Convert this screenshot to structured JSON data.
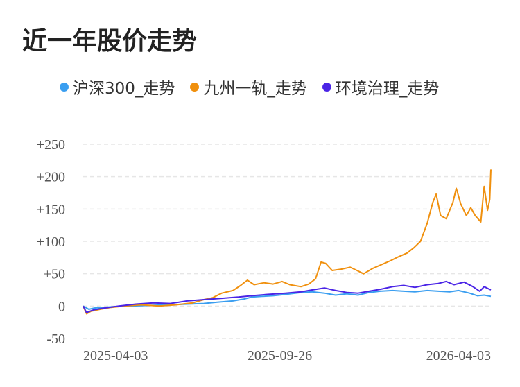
{
  "chart_data": {
    "type": "line",
    "title": "近一年股价走势",
    "xlabel": "",
    "ylabel": "",
    "x_ticks": [
      "2025-04-03",
      "2025-09-26",
      "2026-04-03"
    ],
    "y_ticks": [
      "+250",
      "+200",
      "+150",
      "+100",
      "+50",
      "0",
      "-50"
    ],
    "y_tick_values": [
      250,
      200,
      150,
      100,
      50,
      0,
      -50
    ],
    "ylim": [
      -50,
      250
    ],
    "x_domain": [
      "2025-04-03",
      "2026-04-03"
    ],
    "grid": true,
    "legend_position": "top",
    "series": [
      {
        "name": "沪深300_走势",
        "color": "#3a9ef0",
        "points": [
          [
            "2025-04-03",
            0
          ],
          [
            "2025-04-08",
            -5
          ],
          [
            "2025-04-13",
            -3
          ],
          [
            "2025-04-20",
            -2
          ],
          [
            "2025-04-30",
            -1
          ],
          [
            "2025-05-15",
            0
          ],
          [
            "2025-06-01",
            1
          ],
          [
            "2025-06-20",
            2
          ],
          [
            "2025-07-05",
            3
          ],
          [
            "2025-07-20",
            4
          ],
          [
            "2025-08-01",
            6
          ],
          [
            "2025-08-15",
            8
          ],
          [
            "2025-08-25",
            11
          ],
          [
            "2025-09-01",
            14
          ],
          [
            "2025-09-10",
            15
          ],
          [
            "2025-09-20",
            16
          ],
          [
            "2025-10-01",
            18
          ],
          [
            "2025-10-15",
            21
          ],
          [
            "2025-10-25",
            22
          ],
          [
            "2025-11-05",
            20
          ],
          [
            "2025-11-15",
            17
          ],
          [
            "2025-11-25",
            19
          ],
          [
            "2025-12-05",
            17
          ],
          [
            "2025-12-15",
            21
          ],
          [
            "2025-12-25",
            23
          ],
          [
            "2026-01-05",
            24
          ],
          [
            "2026-01-15",
            23
          ],
          [
            "2026-01-25",
            22
          ],
          [
            "2026-02-05",
            24
          ],
          [
            "2026-02-15",
            23
          ],
          [
            "2026-02-25",
            22
          ],
          [
            "2026-03-05",
            24
          ],
          [
            "2026-03-15",
            20
          ],
          [
            "2026-03-22",
            16
          ],
          [
            "2026-03-28",
            17
          ],
          [
            "2026-04-03",
            15
          ]
        ]
      },
      {
        "name": "九州一轨_走势",
        "color": "#f0900e",
        "points": [
          [
            "2025-04-03",
            0
          ],
          [
            "2025-04-06",
            -12
          ],
          [
            "2025-04-10",
            -8
          ],
          [
            "2025-04-18",
            -5
          ],
          [
            "2025-04-28",
            -2
          ],
          [
            "2025-05-10",
            0
          ],
          [
            "2025-05-25",
            2
          ],
          [
            "2025-06-10",
            0
          ],
          [
            "2025-06-25",
            2
          ],
          [
            "2025-07-10",
            5
          ],
          [
            "2025-07-20",
            10
          ],
          [
            "2025-07-28",
            13
          ],
          [
            "2025-08-05",
            20
          ],
          [
            "2025-08-15",
            24
          ],
          [
            "2025-08-22",
            32
          ],
          [
            "2025-08-28",
            40
          ],
          [
            "2025-09-03",
            33
          ],
          [
            "2025-09-12",
            36
          ],
          [
            "2025-09-20",
            34
          ],
          [
            "2025-09-28",
            38
          ],
          [
            "2025-10-05",
            33
          ],
          [
            "2025-10-15",
            30
          ],
          [
            "2025-10-22",
            34
          ],
          [
            "2025-10-28",
            42
          ],
          [
            "2025-11-02",
            68
          ],
          [
            "2025-11-06",
            66
          ],
          [
            "2025-11-12",
            55
          ],
          [
            "2025-11-20",
            57
          ],
          [
            "2025-11-28",
            60
          ],
          [
            "2025-12-03",
            56
          ],
          [
            "2025-12-10",
            50
          ],
          [
            "2025-12-18",
            58
          ],
          [
            "2025-12-26",
            64
          ],
          [
            "2026-01-03",
            70
          ],
          [
            "2026-01-10",
            76
          ],
          [
            "2026-01-18",
            82
          ],
          [
            "2026-01-24",
            90
          ],
          [
            "2026-01-30",
            100
          ],
          [
            "2026-02-05",
            128
          ],
          [
            "2026-02-10",
            160
          ],
          [
            "2026-02-13",
            173
          ],
          [
            "2026-02-17",
            140
          ],
          [
            "2026-02-22",
            135
          ],
          [
            "2026-02-28",
            160
          ],
          [
            "2026-03-03",
            182
          ],
          [
            "2026-03-07",
            158
          ],
          [
            "2026-03-12",
            140
          ],
          [
            "2026-03-16",
            152
          ],
          [
            "2026-03-20",
            140
          ],
          [
            "2026-03-25",
            130
          ],
          [
            "2026-03-28",
            185
          ],
          [
            "2026-03-31",
            148
          ],
          [
            "2026-04-02",
            165
          ],
          [
            "2026-04-03",
            211
          ]
        ]
      },
      {
        "name": "环境治理_走势",
        "color": "#4a24e6",
        "points": [
          [
            "2025-04-03",
            0
          ],
          [
            "2025-04-06",
            -10
          ],
          [
            "2025-04-12",
            -6
          ],
          [
            "2025-04-22",
            -3
          ],
          [
            "2025-05-05",
            0
          ],
          [
            "2025-05-20",
            3
          ],
          [
            "2025-06-05",
            5
          ],
          [
            "2025-06-20",
            4
          ],
          [
            "2025-07-05",
            8
          ],
          [
            "2025-07-20",
            10
          ],
          [
            "2025-08-05",
            12
          ],
          [
            "2025-08-20",
            14
          ],
          [
            "2025-09-01",
            16
          ],
          [
            "2025-09-15",
            18
          ],
          [
            "2025-10-01",
            20
          ],
          [
            "2025-10-15",
            22
          ],
          [
            "2025-10-25",
            25
          ],
          [
            "2025-11-05",
            28
          ],
          [
            "2025-11-15",
            24
          ],
          [
            "2025-11-25",
            21
          ],
          [
            "2025-12-05",
            20
          ],
          [
            "2025-12-15",
            23
          ],
          [
            "2025-12-25",
            26
          ],
          [
            "2026-01-05",
            30
          ],
          [
            "2026-01-15",
            32
          ],
          [
            "2026-01-25",
            29
          ],
          [
            "2026-02-05",
            33
          ],
          [
            "2026-02-15",
            35
          ],
          [
            "2026-02-22",
            38
          ],
          [
            "2026-03-01",
            33
          ],
          [
            "2026-03-10",
            37
          ],
          [
            "2026-03-18",
            30
          ],
          [
            "2026-03-24",
            23
          ],
          [
            "2026-03-28",
            30
          ],
          [
            "2026-04-03",
            25
          ]
        ]
      }
    ]
  }
}
